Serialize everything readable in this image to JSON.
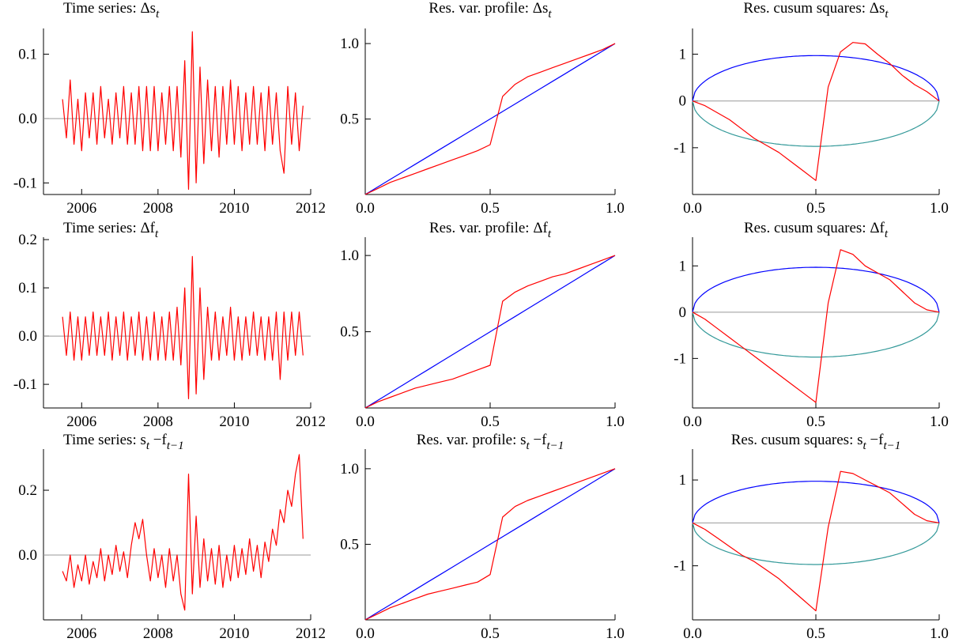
{
  "chart_data": [
    {
      "type": "line",
      "title": [
        "Time series: Δs",
        "t"
      ],
      "xlim": [
        2005,
        2012
      ],
      "xticks": [
        2006,
        2008,
        2010,
        2012
      ],
      "ylim": [
        -0.118,
        0.14
      ],
      "yticks": [
        -0.1,
        {
          "value": 0,
          "label": "0.0"
        },
        0.1
      ],
      "hline": 0,
      "hline_color": "#999999",
      "x": [
        2005.5,
        2005.6,
        2005.7,
        2005.8,
        2005.9,
        2006,
        2006.1,
        2006.2,
        2006.3,
        2006.4,
        2006.5,
        2006.6,
        2006.7,
        2006.8,
        2006.9,
        2007,
        2007.1,
        2007.2,
        2007.3,
        2007.4,
        2007.5,
        2007.6,
        2007.7,
        2007.8,
        2007.9,
        2008,
        2008.1,
        2008.2,
        2008.3,
        2008.4,
        2008.5,
        2008.6,
        2008.7,
        2008.8,
        2008.9,
        2009,
        2009.1,
        2009.2,
        2009.3,
        2009.4,
        2009.5,
        2009.6,
        2009.7,
        2009.8,
        2009.9,
        2010,
        2010.1,
        2010.2,
        2010.3,
        2010.4,
        2010.5,
        2010.6,
        2010.7,
        2010.8,
        2010.9,
        2011,
        2011.1,
        2011.2,
        2011.3,
        2011.4,
        2011.5,
        2011.6,
        2011.7,
        2011.8
      ],
      "series": [
        {
          "color": "#ff0000",
          "values": [
            0.03,
            -0.03,
            0.06,
            -0.04,
            0.03,
            -0.05,
            0.04,
            -0.03,
            0.04,
            -0.04,
            0.05,
            -0.03,
            0.03,
            -0.04,
            0.04,
            -0.03,
            0.05,
            -0.04,
            0.04,
            -0.04,
            0.05,
            -0.05,
            0.05,
            -0.05,
            0.05,
            -0.05,
            0.04,
            -0.04,
            0.05,
            -0.05,
            0.05,
            -0.06,
            0.09,
            -0.11,
            0.135,
            -0.1,
            0.08,
            -0.07,
            0.06,
            -0.05,
            0.05,
            -0.06,
            0.05,
            -0.04,
            0.06,
            -0.04,
            0.05,
            -0.05,
            0.04,
            -0.04,
            0.05,
            -0.04,
            0.04,
            -0.05,
            0.05,
            -0.04,
            0.04,
            -0.05,
            -0.085,
            0.05,
            -0.04,
            0.04,
            -0.05,
            0.02
          ]
        }
      ]
    },
    {
      "type": "line",
      "title": [
        "Res. var. profile: Δs",
        "t"
      ],
      "xlim": [
        0,
        1
      ],
      "xticks": [
        {
          "value": 0,
          "label": "0.0"
        },
        0.5,
        {
          "value": 1,
          "label": "1.0"
        }
      ],
      "ylim": [
        0,
        1.1
      ],
      "yticks": [
        0.5,
        {
          "value": 1,
          "label": "1.0"
        }
      ],
      "x": [
        0,
        0.05,
        0.1,
        0.15,
        0.2,
        0.25,
        0.3,
        0.35,
        0.4,
        0.45,
        0.5,
        0.55,
        0.6,
        0.65,
        0.7,
        0.75,
        0.8,
        0.85,
        0.9,
        0.95,
        1
      ],
      "series": [
        {
          "color": "#0000ff",
          "values": [
            0,
            0.05,
            0.1,
            0.15,
            0.2,
            0.25,
            0.3,
            0.35,
            0.4,
            0.45,
            0.5,
            0.55,
            0.6,
            0.65,
            0.7,
            0.75,
            0.8,
            0.85,
            0.9,
            0.95,
            1
          ]
        },
        {
          "color": "#ff0000",
          "values": [
            0,
            0.04,
            0.08,
            0.11,
            0.14,
            0.17,
            0.2,
            0.23,
            0.26,
            0.29,
            0.33,
            0.65,
            0.73,
            0.78,
            0.81,
            0.84,
            0.87,
            0.9,
            0.93,
            0.96,
            1
          ]
        }
      ]
    },
    {
      "type": "line",
      "title": [
        "Res. cusum squares: Δs",
        "t"
      ],
      "xlim": [
        0,
        1
      ],
      "xticks": [
        {
          "value": 0,
          "label": "0.0"
        },
        0.5,
        {
          "value": 1,
          "label": "1.0"
        }
      ],
      "ylim": [
        -2,
        1.55
      ],
      "yticks": [
        -1,
        0,
        1
      ],
      "hline": 0,
      "hline_color": "#999999",
      "bound": 0.97,
      "bound_colors": [
        "#0000ff",
        "#339999"
      ],
      "x": [
        0,
        0.05,
        0.1,
        0.15,
        0.2,
        0.25,
        0.3,
        0.35,
        0.4,
        0.45,
        0.5,
        0.55,
        0.6,
        0.65,
        0.7,
        0.75,
        0.8,
        0.85,
        0.9,
        0.95,
        1
      ],
      "series": [
        {
          "color": "#ff0000",
          "values": [
            0,
            -0.1,
            -0.25,
            -0.4,
            -0.6,
            -0.8,
            -0.95,
            -1.1,
            -1.3,
            -1.5,
            -1.7,
            0.3,
            1.05,
            1.25,
            1.22,
            1.0,
            0.8,
            0.55,
            0.35,
            0.2,
            0
          ]
        }
      ]
    },
    {
      "type": "line",
      "title": [
        "Time series: Δf",
        "t"
      ],
      "xlim": [
        2005,
        2012
      ],
      "xticks": [
        2006,
        2008,
        2010,
        2012
      ],
      "ylim": [
        -0.149,
        0.205
      ],
      "yticks": [
        -0.1,
        {
          "value": 0,
          "label": "0.0"
        },
        0.1,
        0.2
      ],
      "hline": 0,
      "hline_color": "#999999",
      "x": [
        2005.5,
        2005.6,
        2005.7,
        2005.8,
        2005.9,
        2006,
        2006.1,
        2006.2,
        2006.3,
        2006.4,
        2006.5,
        2006.6,
        2006.7,
        2006.8,
        2006.9,
        2007,
        2007.1,
        2007.2,
        2007.3,
        2007.4,
        2007.5,
        2007.6,
        2007.7,
        2007.8,
        2007.9,
        2008,
        2008.1,
        2008.2,
        2008.3,
        2008.4,
        2008.5,
        2008.6,
        2008.7,
        2008.8,
        2008.9,
        2009,
        2009.1,
        2009.2,
        2009.3,
        2009.4,
        2009.5,
        2009.6,
        2009.7,
        2009.8,
        2009.9,
        2010,
        2010.1,
        2010.2,
        2010.3,
        2010.4,
        2010.5,
        2010.6,
        2010.7,
        2010.8,
        2010.9,
        2011,
        2011.1,
        2011.2,
        2011.3,
        2011.4,
        2011.5,
        2011.6,
        2011.7,
        2011.8
      ],
      "series": [
        {
          "color": "#ff0000",
          "values": [
            0.04,
            -0.04,
            0.05,
            -0.05,
            0.04,
            -0.05,
            0.04,
            -0.04,
            0.05,
            -0.04,
            0.04,
            -0.04,
            0.05,
            -0.05,
            0.04,
            -0.04,
            0.05,
            -0.05,
            0.04,
            -0.04,
            0.05,
            -0.05,
            0.04,
            -0.05,
            0.05,
            -0.05,
            0.04,
            -0.05,
            0.05,
            -0.05,
            0.06,
            -0.06,
            0.1,
            -0.13,
            0.165,
            -0.12,
            0.1,
            -0.09,
            0.06,
            -0.05,
            0.05,
            -0.05,
            0.04,
            -0.04,
            0.06,
            -0.05,
            0.04,
            -0.05,
            0.04,
            -0.04,
            0.05,
            -0.04,
            0.04,
            -0.05,
            0.04,
            -0.05,
            0.05,
            -0.09,
            0.05,
            -0.05,
            0.05,
            -0.04,
            0.05,
            -0.04
          ]
        }
      ]
    },
    {
      "type": "line",
      "title": [
        "Res. var. profile: Δf",
        "t"
      ],
      "xlim": [
        0,
        1
      ],
      "xticks": [
        {
          "value": 0,
          "label": "0.0"
        },
        0.5,
        {
          "value": 1,
          "label": "1.0"
        }
      ],
      "ylim": [
        0,
        1.12
      ],
      "yticks": [
        0.5,
        {
          "value": 1,
          "label": "1.0"
        }
      ],
      "x": [
        0,
        0.05,
        0.1,
        0.15,
        0.2,
        0.25,
        0.3,
        0.35,
        0.4,
        0.45,
        0.5,
        0.55,
        0.6,
        0.65,
        0.7,
        0.75,
        0.8,
        0.85,
        0.9,
        0.95,
        1
      ],
      "series": [
        {
          "color": "#0000ff",
          "values": [
            0,
            0.05,
            0.1,
            0.15,
            0.2,
            0.25,
            0.3,
            0.35,
            0.4,
            0.45,
            0.5,
            0.55,
            0.6,
            0.65,
            0.7,
            0.75,
            0.8,
            0.85,
            0.9,
            0.95,
            1
          ]
        },
        {
          "color": "#ff0000",
          "values": [
            0,
            0.04,
            0.07,
            0.1,
            0.13,
            0.15,
            0.17,
            0.19,
            0.22,
            0.25,
            0.28,
            0.7,
            0.76,
            0.8,
            0.83,
            0.86,
            0.88,
            0.91,
            0.94,
            0.97,
            1
          ]
        }
      ]
    },
    {
      "type": "line",
      "title": [
        "Res. cusum squares: Δf",
        "t"
      ],
      "xlim": [
        0,
        1
      ],
      "xticks": [
        {
          "value": 0,
          "label": "0.0"
        },
        0.5,
        {
          "value": 1,
          "label": "1.0"
        }
      ],
      "ylim": [
        -2.07,
        1.62
      ],
      "yticks": [
        -1,
        0,
        1
      ],
      "hline": 0,
      "hline_color": "#999999",
      "bound": 0.97,
      "bound_colors": [
        "#0000ff",
        "#339999"
      ],
      "x": [
        0,
        0.05,
        0.1,
        0.15,
        0.2,
        0.25,
        0.3,
        0.35,
        0.4,
        0.45,
        0.5,
        0.55,
        0.6,
        0.65,
        0.7,
        0.75,
        0.8,
        0.85,
        0.9,
        0.95,
        1
      ],
      "series": [
        {
          "color": "#ff0000",
          "values": [
            0,
            -0.15,
            -0.35,
            -0.55,
            -0.75,
            -0.95,
            -1.15,
            -1.35,
            -1.55,
            -1.75,
            -1.95,
            0.2,
            1.35,
            1.25,
            1.0,
            0.85,
            0.7,
            0.45,
            0.2,
            0.05,
            0
          ]
        }
      ]
    },
    {
      "type": "line",
      "title": [
        "Time series: s",
        "t",
        " −f",
        "t−1"
      ],
      "xlim": [
        2005,
        2012
      ],
      "xticks": [
        2006,
        2008,
        2010,
        2012
      ],
      "ylim": [
        -0.2,
        0.327
      ],
      "yticks": [
        {
          "value": 0,
          "label": "0.0"
        },
        0.2
      ],
      "hline": 0,
      "hline_color": "#999999",
      "x": [
        2005.5,
        2005.6,
        2005.7,
        2005.8,
        2005.9,
        2006,
        2006.1,
        2006.2,
        2006.3,
        2006.4,
        2006.5,
        2006.6,
        2006.7,
        2006.8,
        2006.9,
        2007,
        2007.1,
        2007.2,
        2007.3,
        2007.4,
        2007.5,
        2007.6,
        2007.7,
        2007.8,
        2007.9,
        2008,
        2008.1,
        2008.2,
        2008.3,
        2008.4,
        2008.5,
        2008.6,
        2008.7,
        2008.8,
        2008.9,
        2009,
        2009.1,
        2009.2,
        2009.3,
        2009.4,
        2009.5,
        2009.6,
        2009.7,
        2009.8,
        2009.9,
        2010,
        2010.1,
        2010.2,
        2010.3,
        2010.4,
        2010.5,
        2010.6,
        2010.7,
        2010.8,
        2010.9,
        2011,
        2011.1,
        2011.2,
        2011.3,
        2011.4,
        2011.5,
        2011.6,
        2011.7,
        2011.8
      ],
      "series": [
        {
          "color": "#ff0000",
          "values": [
            -0.05,
            -0.08,
            0.0,
            -0.1,
            -0.03,
            -0.08,
            0.0,
            -0.09,
            -0.02,
            -0.07,
            0.02,
            -0.08,
            0.0,
            -0.06,
            0.03,
            -0.05,
            0.01,
            -0.07,
            0.03,
            0.1,
            0.05,
            0.11,
            0.0,
            -0.08,
            0.02,
            -0.07,
            0.0,
            -0.1,
            0.02,
            -0.08,
            0.0,
            -0.12,
            -0.17,
            0.25,
            -0.12,
            0.12,
            -0.1,
            0.05,
            -0.08,
            0.02,
            -0.09,
            0.03,
            -0.1,
            0.0,
            -0.08,
            0.03,
            -0.07,
            0.02,
            -0.06,
            0.05,
            -0.05,
            0.03,
            -0.07,
            0.04,
            -0.02,
            0.08,
            0.03,
            0.14,
            0.1,
            0.2,
            0.15,
            0.25,
            0.31,
            0.05
          ]
        }
      ]
    },
    {
      "type": "line",
      "title": [
        "Res. var. profile: s",
        "t",
        " −f",
        "t−1"
      ],
      "xlim": [
        0,
        1
      ],
      "xticks": [
        {
          "value": 0,
          "label": "0.0"
        },
        0.5,
        {
          "value": 1,
          "label": "1.0"
        }
      ],
      "ylim": [
        0,
        1.13
      ],
      "yticks": [
        0.5,
        {
          "value": 1,
          "label": "1.0"
        }
      ],
      "x": [
        0,
        0.05,
        0.1,
        0.15,
        0.2,
        0.25,
        0.3,
        0.35,
        0.4,
        0.45,
        0.5,
        0.55,
        0.6,
        0.65,
        0.7,
        0.75,
        0.8,
        0.85,
        0.9,
        0.95,
        1
      ],
      "series": [
        {
          "color": "#0000ff",
          "values": [
            0,
            0.05,
            0.1,
            0.15,
            0.2,
            0.25,
            0.3,
            0.35,
            0.4,
            0.45,
            0.5,
            0.55,
            0.6,
            0.65,
            0.7,
            0.75,
            0.8,
            0.85,
            0.9,
            0.95,
            1
          ]
        },
        {
          "color": "#ff0000",
          "values": [
            0,
            0.04,
            0.08,
            0.11,
            0.14,
            0.17,
            0.19,
            0.21,
            0.23,
            0.25,
            0.3,
            0.68,
            0.75,
            0.79,
            0.82,
            0.85,
            0.88,
            0.91,
            0.94,
            0.97,
            1
          ]
        }
      ]
    },
    {
      "type": "line",
      "title": [
        "Res. cusum squares: s",
        "t",
        " −f",
        "t−1"
      ],
      "xlim": [
        0,
        1
      ],
      "xticks": [
        {
          "value": 0,
          "label": "0.0"
        },
        0.5,
        {
          "value": 1,
          "label": "1.0"
        }
      ],
      "ylim": [
        -2.26,
        1.72
      ],
      "yticks": [
        -1,
        1
      ],
      "hline": 0,
      "hline_color": "#999999",
      "bound": 0.97,
      "bound_colors": [
        "#0000ff",
        "#339999"
      ],
      "x": [
        0,
        0.05,
        0.1,
        0.15,
        0.2,
        0.25,
        0.3,
        0.35,
        0.4,
        0.45,
        0.5,
        0.55,
        0.6,
        0.65,
        0.7,
        0.75,
        0.8,
        0.85,
        0.9,
        0.95,
        1
      ],
      "series": [
        {
          "color": "#ff0000",
          "values": [
            0,
            -0.15,
            -0.35,
            -0.55,
            -0.75,
            -0.9,
            -1.1,
            -1.3,
            -1.55,
            -1.8,
            -2.05,
            -0.1,
            1.2,
            1.15,
            1.0,
            0.85,
            0.7,
            0.45,
            0.2,
            0.05,
            0
          ]
        }
      ]
    }
  ]
}
